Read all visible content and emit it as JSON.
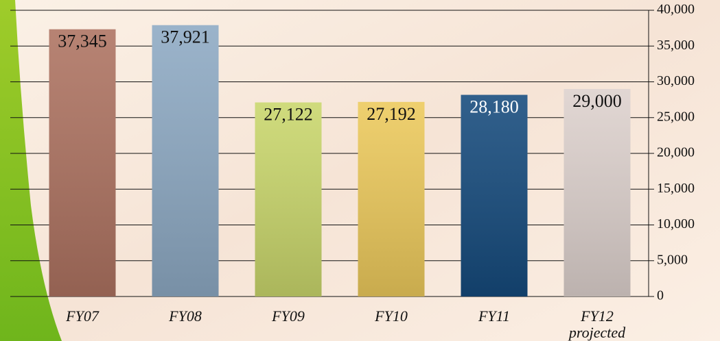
{
  "chart_data": {
    "type": "bar",
    "categories": [
      "FY07",
      "FY08",
      "FY09",
      "FY10",
      "FY11",
      "FY12 projected"
    ],
    "values": [
      37345,
      37921,
      27122,
      27192,
      28180,
      29000
    ],
    "value_labels": [
      "37,345",
      "37,921",
      "27,122",
      "27,192",
      "28,180",
      "29,000"
    ],
    "colors": [
      "#ad7260",
      "#8da9c3",
      "#c9d66b",
      "#ecc95b",
      "#154a7c",
      "#ddd1cd"
    ],
    "value_label_colors": [
      "#111111",
      "#111111",
      "#111111",
      "#111111",
      "#ffffff",
      "#111111"
    ],
    "ylim": [
      0,
      40000
    ],
    "yticks": [
      0,
      {
        "value": 5000,
        "label": "5,000"
      },
      {
        "value": 10000,
        "label": "10,000"
      },
      {
        "value": 15000,
        "label": "15,000"
      },
      {
        "value": 20000,
        "label": "20,000"
      },
      {
        "value": 25000,
        "label": "25,000"
      },
      {
        "value": 30000,
        "label": "30,000"
      },
      {
        "value": 35000,
        "label": "35,000"
      },
      {
        "value": 40000,
        "label": "40,000"
      }
    ],
    "grid": true
  }
}
